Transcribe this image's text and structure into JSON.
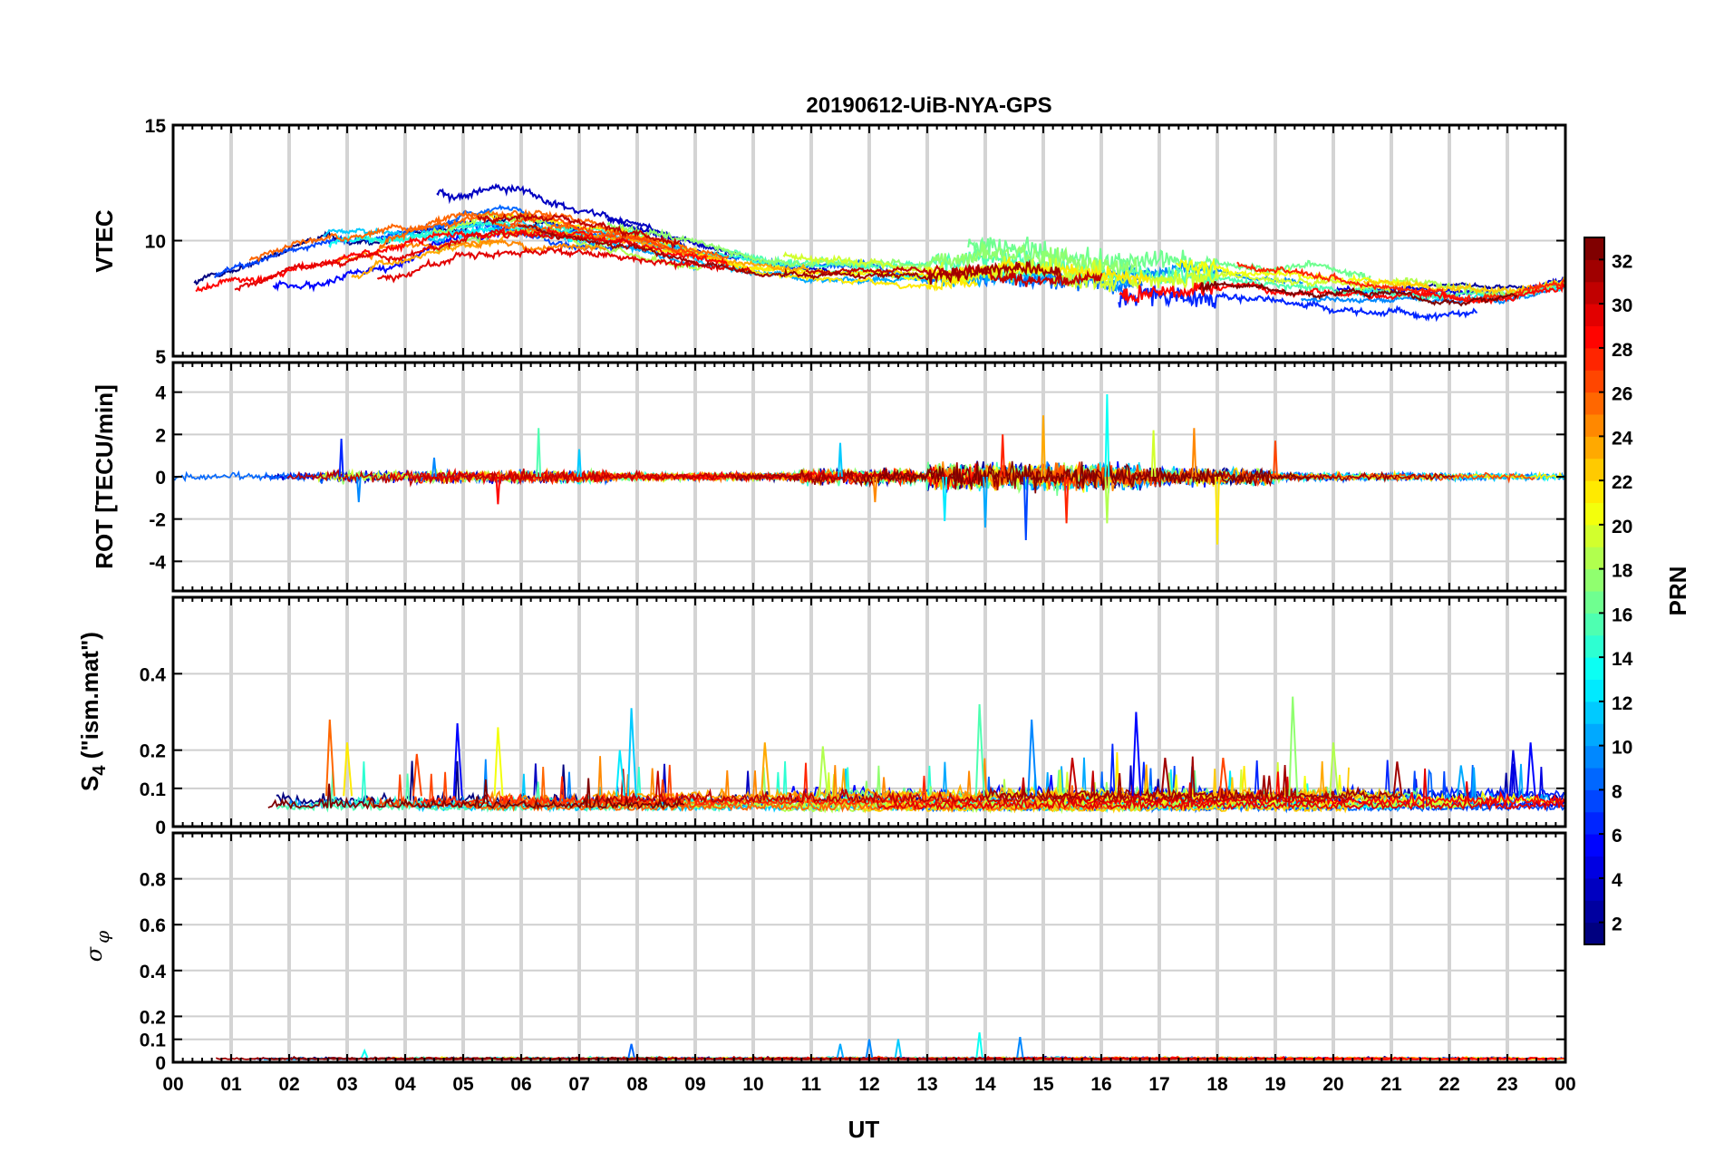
{
  "figure": {
    "title": "20190612-UiB-NYA-GPS",
    "xlabel": "UT"
  },
  "chart_data": [
    {
      "type": "line",
      "panel": "vtec",
      "title": "20190612-UiB-NYA-GPS",
      "ylabel": "VTEC",
      "xlim": [
        0,
        24
      ],
      "ylim": [
        5,
        15
      ],
      "yticks": [
        5,
        10,
        15
      ],
      "grid": true,
      "note_series": "one line per satellite PRN 1-32, colour by PRN",
      "envelope": {
        "x": [
          0,
          1,
          2,
          3,
          4,
          5,
          6,
          7,
          8,
          9,
          10,
          11,
          12,
          13,
          14,
          15,
          16,
          17,
          18,
          19,
          20,
          21,
          22,
          23,
          24
        ],
        "mean": [
          7.8,
          8.4,
          9.2,
          9.6,
          10.0,
          10.6,
          10.8,
          10.3,
          10.0,
          9.4,
          8.9,
          8.7,
          8.6,
          8.5,
          8.6,
          8.5,
          8.4,
          8.5,
          8.4,
          8.1,
          8.0,
          7.8,
          7.6,
          7.6,
          8.0
        ],
        "spread": [
          0.8,
          1.2,
          1.3,
          1.4,
          1.5,
          1.5,
          1.6,
          1.2,
          1.1,
          1.0,
          0.9,
          0.9,
          1.0,
          1.0,
          1.4,
          1.3,
          1.0,
          1.0,
          1.0,
          1.0,
          1.2,
          1.0,
          1.0,
          1.0,
          0.9
        ]
      }
    },
    {
      "type": "line",
      "panel": "rot",
      "ylabel": "ROT [TECU/min]",
      "xlim": [
        0,
        24
      ],
      "ylim": [
        -5.4,
        5.4
      ],
      "yticks": [
        -4,
        -2,
        0,
        2,
        4
      ],
      "grid": true,
      "spikes": [
        [
          2.9,
          1.8
        ],
        [
          3.2,
          -1.2
        ],
        [
          4.5,
          0.9
        ],
        [
          5.6,
          -1.3
        ],
        [
          6.3,
          2.3
        ],
        [
          7.0,
          1.3
        ],
        [
          11.5,
          1.6
        ],
        [
          12.1,
          -1.2
        ],
        [
          13.3,
          -2.1
        ],
        [
          14.0,
          -2.4
        ],
        [
          14.3,
          2.0
        ],
        [
          14.7,
          -3.0
        ],
        [
          15.0,
          2.9
        ],
        [
          15.4,
          -2.2
        ],
        [
          16.1,
          3.9
        ],
        [
          16.1,
          -2.2
        ],
        [
          16.9,
          2.2
        ],
        [
          17.6,
          2.3
        ],
        [
          18.0,
          -3.2
        ],
        [
          19.0,
          1.7
        ]
      ]
    },
    {
      "type": "line",
      "panel": "s4",
      "ylabel": "S4 (\"ism.mat\")",
      "xlim": [
        0,
        24
      ],
      "ylim": [
        0,
        0.6
      ],
      "yticks": [
        0,
        0.1,
        0.2,
        0.4
      ],
      "grid": true,
      "peaks": [
        [
          2.7,
          0.28
        ],
        [
          3.0,
          0.22
        ],
        [
          4.2,
          0.19
        ],
        [
          4.9,
          0.27
        ],
        [
          5.6,
          0.26
        ],
        [
          7.9,
          0.31
        ],
        [
          7.7,
          0.2
        ],
        [
          10.2,
          0.22
        ],
        [
          11.2,
          0.21
        ],
        [
          13.9,
          0.32
        ],
        [
          14.8,
          0.28
        ],
        [
          15.5,
          0.18
        ],
        [
          16.6,
          0.3
        ],
        [
          17.1,
          0.18
        ],
        [
          18.1,
          0.18
        ],
        [
          19.3,
          0.34
        ],
        [
          20.0,
          0.22
        ],
        [
          21.1,
          0.17
        ],
        [
          22.2,
          0.16
        ],
        [
          23.1,
          0.2
        ],
        [
          23.4,
          0.22
        ]
      ]
    },
    {
      "type": "line",
      "panel": "sigma_phi",
      "ylabel": "σ φ",
      "xlim": [
        0,
        24
      ],
      "ylim": [
        0,
        1.0
      ],
      "yticks": [
        0,
        0.1,
        0.2,
        0.4,
        0.6,
        0.8
      ],
      "grid": true,
      "peaks": [
        [
          11.5,
          0.08
        ],
        [
          12.0,
          0.1
        ],
        [
          12.5,
          0.1
        ],
        [
          13.9,
          0.13
        ],
        [
          14.6,
          0.11
        ],
        [
          7.9,
          0.08
        ],
        [
          3.3,
          0.05
        ]
      ]
    }
  ],
  "xticks": [
    "00",
    "01",
    "02",
    "03",
    "04",
    "05",
    "06",
    "07",
    "08",
    "09",
    "10",
    "11",
    "12",
    "13",
    "14",
    "15",
    "16",
    "17",
    "18",
    "19",
    "20",
    "21",
    "22",
    "23",
    "00"
  ],
  "colorbar": {
    "label": "PRN",
    "range": [
      1,
      32
    ],
    "ticks": [
      "2",
      "4",
      "6",
      "8",
      "10",
      "12",
      "14",
      "16",
      "18",
      "20",
      "22",
      "24",
      "26",
      "28",
      "30",
      "32"
    ],
    "colormap": "jet"
  }
}
